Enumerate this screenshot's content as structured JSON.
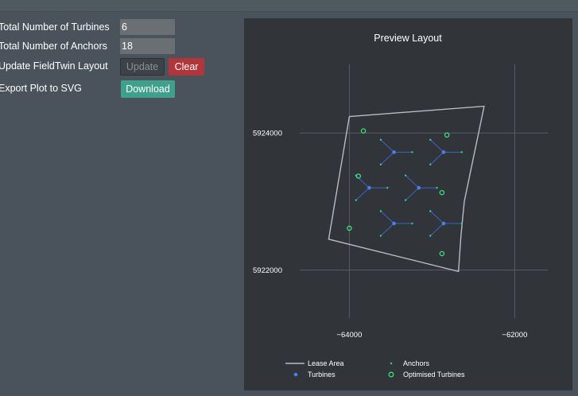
{
  "form": {
    "turbines_label": "Total Number of Turbines",
    "turbines_value": "6",
    "anchors_label": "Total Number of Anchors",
    "anchors_value": "18",
    "update_label": "Update FieldTwin Layout",
    "update_button": "Update",
    "clear_button": "Clear",
    "export_label": "Export Plot to SVG",
    "download_button": "Download"
  },
  "colors": {
    "page_background": "#4a535b",
    "plot_background": "#313439",
    "lease_area": "#b9bcc2",
    "turbines": "#4a80ee",
    "anchors": "#2fd39a",
    "optimised_turbines": "#3ee07a",
    "mooring_lines": "#3d64c4",
    "clear_button": "#b0363b",
    "download_button": "#3fa08b"
  },
  "chart_data": {
    "type": "scatter",
    "title": "Preview Layout",
    "xlabel": "",
    "ylabel": "",
    "xlim": [
      -64600,
      -61600
    ],
    "ylim": [
      5921300,
      5925000
    ],
    "grid": true,
    "x_ticks": [
      -64000,
      -62000
    ],
    "x_tick_labels": [
      "−64000",
      "−62000"
    ],
    "y_ticks": [
      5924000,
      5922000
    ],
    "y_tick_labels": [
      "5924000",
      "5922000"
    ],
    "legend_position": "bottom",
    "series": [
      {
        "name": "Lease Area",
        "kind": "line",
        "x": [
          -64000,
          -62370,
          -62610,
          -62650,
          -62680,
          -64250,
          -64000
        ],
        "y": [
          5924240,
          5924390,
          5923000,
          5922500,
          5921980,
          5922450,
          5924240
        ]
      },
      {
        "name": "Turbines",
        "kind": "marker",
        "x": [
          -63460,
          -62860,
          -63760,
          -63160,
          -63460,
          -62860
        ],
        "y": [
          5923720,
          5923720,
          5923200,
          5923200,
          5922680,
          5922680
        ]
      },
      {
        "name": "Anchors",
        "kind": "point",
        "x": [
          -63620,
          -63620,
          -63240,
          -63020,
          -63020,
          -62640,
          -63920,
          -63920,
          -63540,
          -63320,
          -63320,
          -62940,
          -63620,
          -63620,
          -63240,
          -63020,
          -63020,
          -62640
        ],
        "y": [
          5923900,
          5923540,
          5923720,
          5923900,
          5923540,
          5923720,
          5923380,
          5923020,
          5923200,
          5923380,
          5923020,
          5923200,
          5922860,
          5922500,
          5922680,
          5922860,
          5922500,
          5922680
        ]
      },
      {
        "name": "Optimised Turbines",
        "kind": "ring",
        "x": [
          -63830,
          -62820,
          -63890,
          -62880,
          -64000,
          -62880
        ],
        "y": [
          5924030,
          5923970,
          5923370,
          5923130,
          5922610,
          5922240
        ]
      }
    ]
  }
}
